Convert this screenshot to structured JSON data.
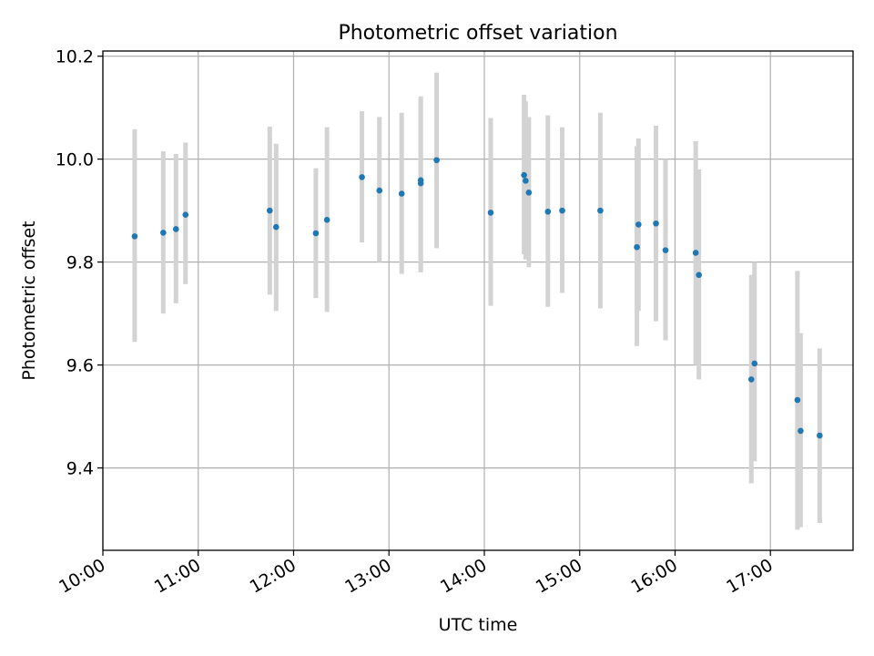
{
  "chart_data": {
    "type": "scatter",
    "title": "Photometric offset variation",
    "xlabel": "UTC time",
    "ylabel": "Photometric offset",
    "x_axis_kind": "time",
    "xlim": [
      "10:00",
      "17:52"
    ],
    "ylim": [
      9.24,
      10.21
    ],
    "grid": true,
    "xticks": [
      "10:00",
      "11:00",
      "12:00",
      "13:00",
      "14:00",
      "15:00",
      "16:00",
      "17:00"
    ],
    "yticks": [
      "9.4",
      "9.6",
      "9.8",
      "10.0",
      "10.2"
    ],
    "marker_color": "#1f77b4",
    "errorbar_color": "#d3d3d3",
    "points": [
      {
        "t": "10:20",
        "y": 9.85,
        "lo": 9.645,
        "hi": 10.058
      },
      {
        "t": "10:38",
        "y": 9.857,
        "lo": 9.7,
        "hi": 10.015
      },
      {
        "t": "10:46",
        "y": 9.864,
        "lo": 9.72,
        "hi": 10.01
      },
      {
        "t": "10:52",
        "y": 9.892,
        "lo": 9.757,
        "hi": 10.032
      },
      {
        "t": "11:45",
        "y": 9.9,
        "lo": 9.737,
        "hi": 10.063
      },
      {
        "t": "11:49",
        "y": 9.868,
        "lo": 9.705,
        "hi": 10.03
      },
      {
        "t": "12:14",
        "y": 9.856,
        "lo": 9.73,
        "hi": 9.982
      },
      {
        "t": "12:21",
        "y": 9.882,
        "lo": 9.703,
        "hi": 10.062
      },
      {
        "t": "12:43",
        "y": 9.965,
        "lo": 9.838,
        "hi": 10.093
      },
      {
        "t": "12:54",
        "y": 9.939,
        "lo": 9.8,
        "hi": 10.082
      },
      {
        "t": "13:08",
        "y": 9.933,
        "lo": 9.777,
        "hi": 10.09
      },
      {
        "t": "13:20",
        "y": 9.953,
        "lo": 9.785,
        "hi": 10.122
      },
      {
        "t": "13:20",
        "y": 9.959,
        "lo": 9.78,
        "hi": 10.118
      },
      {
        "t": "13:30",
        "y": 9.998,
        "lo": 9.827,
        "hi": 10.168
      },
      {
        "t": "14:04",
        "y": 9.896,
        "lo": 9.715,
        "hi": 10.08
      },
      {
        "t": "14:25",
        "y": 9.969,
        "lo": 9.815,
        "hi": 10.125
      },
      {
        "t": "14:26",
        "y": 9.958,
        "lo": 9.805,
        "hi": 10.112
      },
      {
        "t": "14:28",
        "y": 9.935,
        "lo": 9.79,
        "hi": 10.082
      },
      {
        "t": "14:40",
        "y": 9.898,
        "lo": 9.713,
        "hi": 10.085
      },
      {
        "t": "14:49",
        "y": 9.9,
        "lo": 9.74,
        "hi": 10.062
      },
      {
        "t": "15:13",
        "y": 9.9,
        "lo": 9.71,
        "hi": 10.09
      },
      {
        "t": "15:36",
        "y": 9.829,
        "lo": 9.637,
        "hi": 10.025
      },
      {
        "t": "15:37",
        "y": 9.873,
        "lo": 9.705,
        "hi": 10.04
      },
      {
        "t": "15:48",
        "y": 9.875,
        "lo": 9.685,
        "hi": 10.065
      },
      {
        "t": "15:54",
        "y": 9.823,
        "lo": 9.648,
        "hi": 10.0
      },
      {
        "t": "16:13",
        "y": 9.818,
        "lo": 9.6,
        "hi": 10.035
      },
      {
        "t": "16:15",
        "y": 9.775,
        "lo": 9.572,
        "hi": 9.98
      },
      {
        "t": "16:48",
        "y": 9.572,
        "lo": 9.37,
        "hi": 9.775
      },
      {
        "t": "16:50",
        "y": 9.603,
        "lo": 9.413,
        "hi": 9.8
      },
      {
        "t": "17:17",
        "y": 9.532,
        "lo": 9.28,
        "hi": 9.783
      },
      {
        "t": "17:19",
        "y": 9.472,
        "lo": 9.285,
        "hi": 9.662
      },
      {
        "t": "17:31",
        "y": 9.463,
        "lo": 9.293,
        "hi": 9.632
      }
    ]
  }
}
